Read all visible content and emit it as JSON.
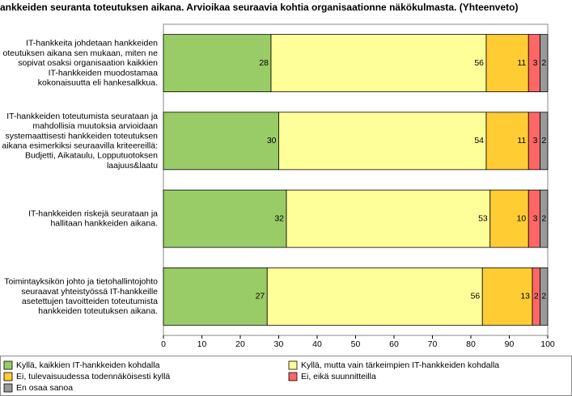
{
  "chart_data": {
    "type": "stacked-barh",
    "title": "ankkeiden seuranta toteutuksen aikana. Arvioikaa seuraavia kohtia organisaationne näkökulmasta. (Yhteenveto)",
    "categories": [
      "IT-hankkeita johdetaan hankkeiden\noteutuksen aikana sen mukaan, miten ne\nsopivat osaksi organisaation kaikkien\nIT-hankkeiden muodostamaa\nkokonaisuutta eli hankesalkkua.",
      "IT-hankkeiden toteutumista seurataan ja\nmahdollisia muutoksia arvioidaan\nsystemaattisesti hankkeiden toteutuksen\naikana esimerkiksi seuraavilla kriteereillä:\nBudjetti, Aikataulu, Lopputuotoksen\nlaajuus&laatu",
      "IT-hankkeiden riskejä seurataan ja\nhallitaan hankkeiden aikana.",
      "Toimintayksikön johto ja tietohallintojohto\nseuraavat yhteistyössä IT-hankkeille\nasetettujen tavoitteiden toteutumista\nhankkeiden toteutuksen aikana."
    ],
    "series": [
      {
        "name": "Kyllä, kaikkien IT-hankkeiden kohdalla",
        "color": "#99cc66",
        "values": [
          28,
          30,
          32,
          27
        ]
      },
      {
        "name": "Kyllä, mutta vain tärkeimpien IT-hankkeiden kohdalla",
        "color": "#ffff99",
        "values": [
          56,
          54,
          53,
          56
        ]
      },
      {
        "name": "Ei, tulevaisuudessa todennäköisesti kyllä",
        "color": "#ffcc33",
        "values": [
          11,
          11,
          10,
          13
        ]
      },
      {
        "name": "Ei, eikä suunnitteilla",
        "color": "#ff6666",
        "values": [
          3,
          3,
          3,
          2
        ]
      },
      {
        "name": "En osaa sanoa",
        "color": "#999999",
        "values": [
          2,
          2,
          2,
          2
        ]
      }
    ],
    "xlim": [
      0,
      100
    ],
    "xticks": [
      0,
      10,
      20,
      30,
      40,
      50,
      60,
      70,
      80,
      90,
      100
    ]
  }
}
